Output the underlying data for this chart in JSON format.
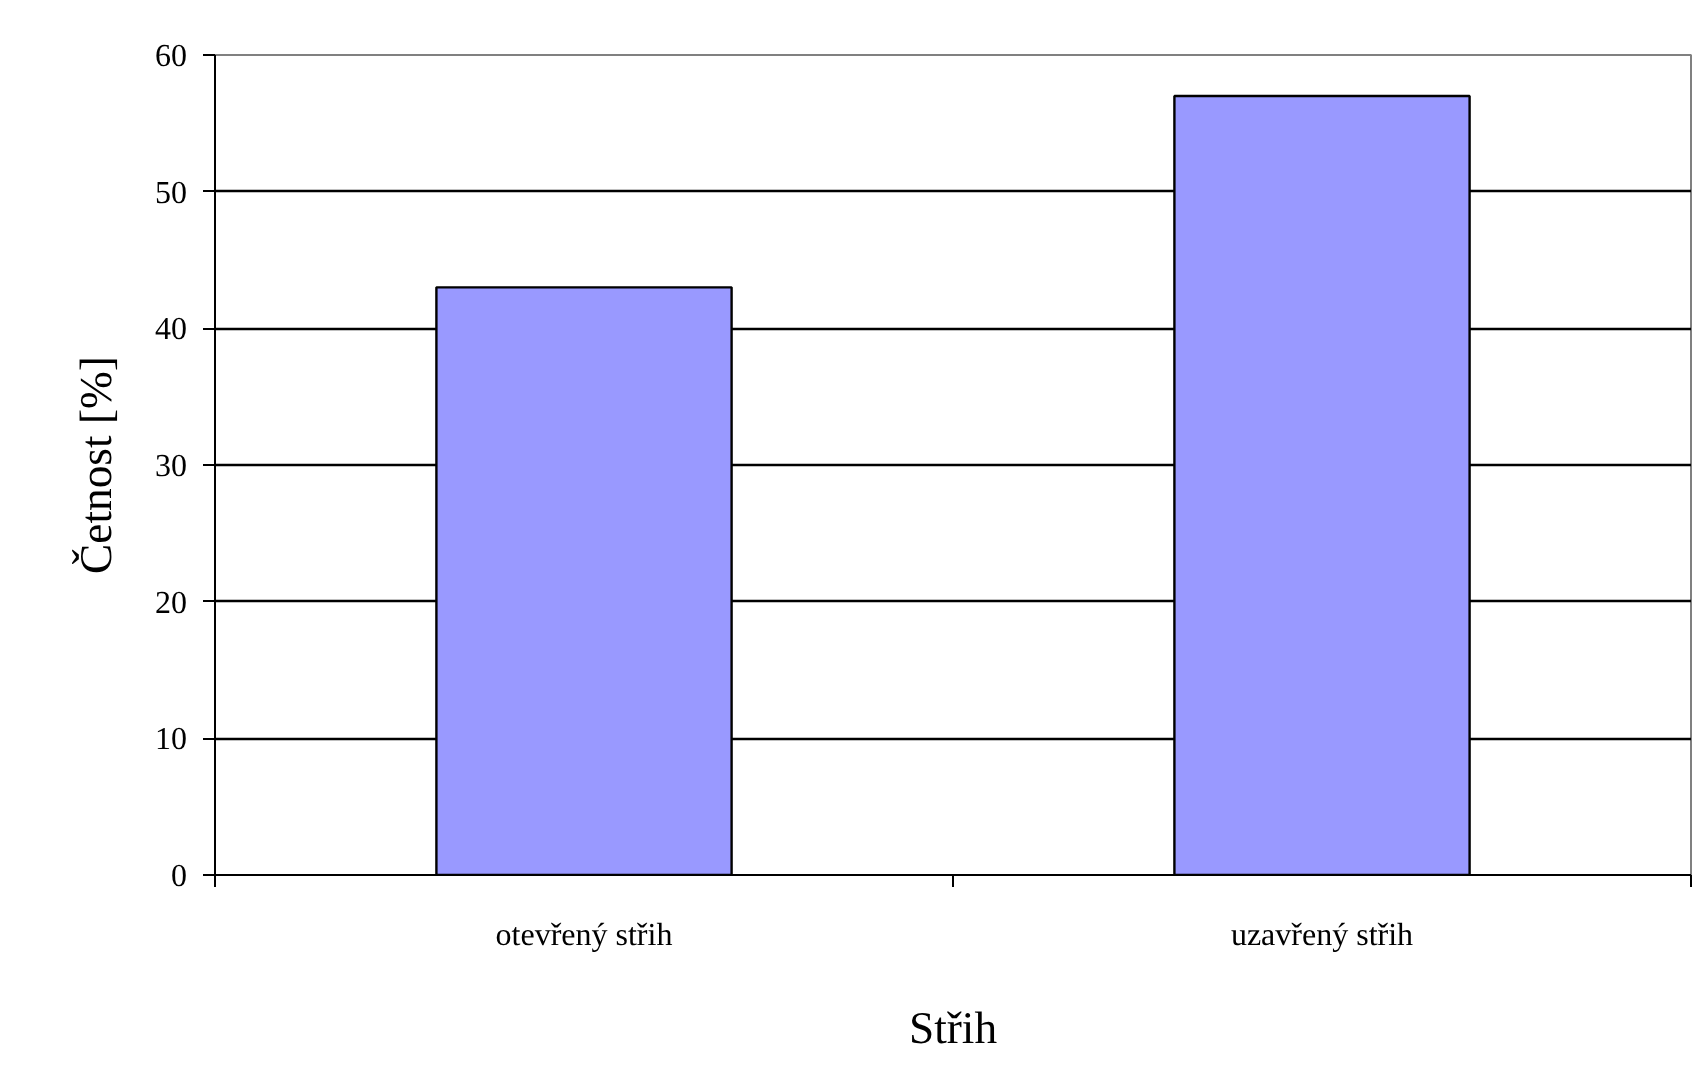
{
  "chart_data": {
    "type": "bar",
    "xlabel": "Střih",
    "ylabel": "Četnost [%]",
    "categories": [
      "otevřený střih",
      "uzavřený střih"
    ],
    "values": [
      43,
      57
    ],
    "color": "#9999ff",
    "ylim": [
      0,
      60
    ],
    "yticks": [
      0,
      10,
      20,
      30,
      40,
      50,
      60
    ],
    "grid": "y"
  }
}
